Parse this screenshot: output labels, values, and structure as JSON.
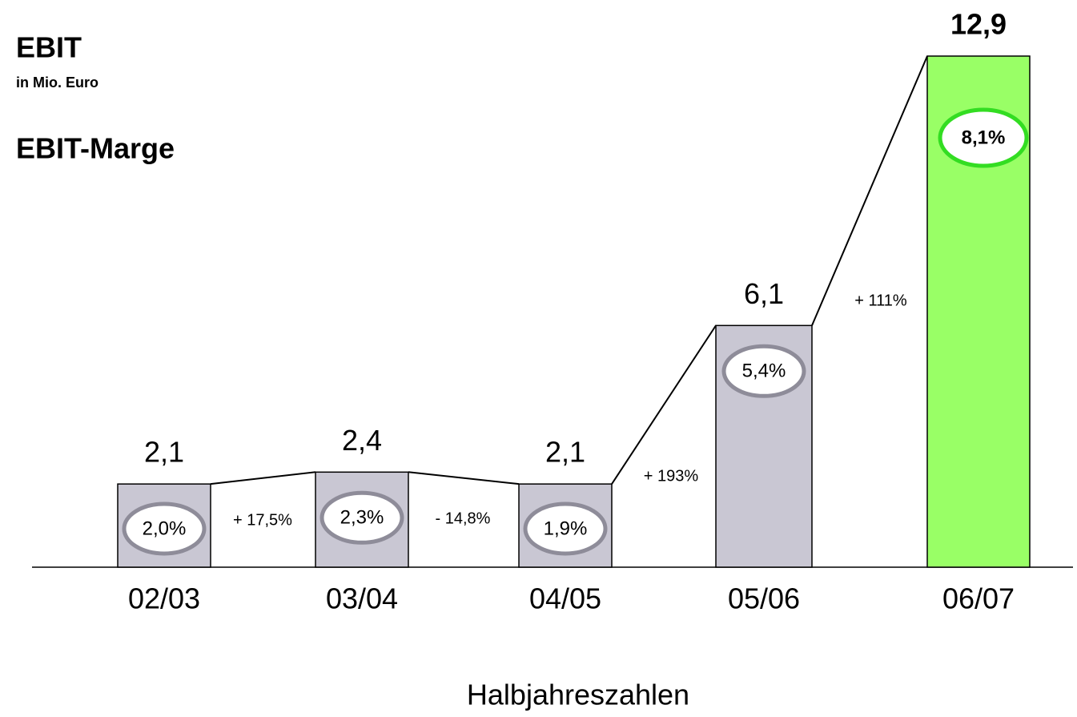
{
  "chart_data": {
    "type": "bar",
    "title": "EBIT",
    "subtitle": "in Mio. Euro",
    "secondary_title": "EBIT-Marge",
    "x_label": "Halbjahreszahlen",
    "categories": [
      "02/03",
      "03/04",
      "04/05",
      "05/06",
      "06/07"
    ],
    "values": [
      2.1,
      2.4,
      2.1,
      6.1,
      12.9
    ],
    "value_labels": [
      "2,1",
      "2,4",
      "2,1",
      "6,1",
      "12,9"
    ],
    "colors": [
      "#c9c7d3",
      "#c9c7d3",
      "#c9c7d3",
      "#c9c7d3",
      "#99ff66"
    ],
    "margins": {
      "values": [
        2.0,
        2.3,
        1.9,
        5.4,
        8.1
      ],
      "value_labels": [
        "2,0%",
        "2,3%",
        "1,9%",
        "5,4%",
        "8,1%"
      ],
      "colors": [
        "#8e8c99",
        "#8e8c99",
        "#8e8c99",
        "#8e8c99",
        "#33dd22"
      ]
    },
    "changes": {
      "values": [
        17.5,
        -14.8,
        193,
        111
      ],
      "value_labels": [
        "+ 17,5%",
        "- 14,8%",
        "+ 193%",
        "+ 111%"
      ]
    }
  }
}
